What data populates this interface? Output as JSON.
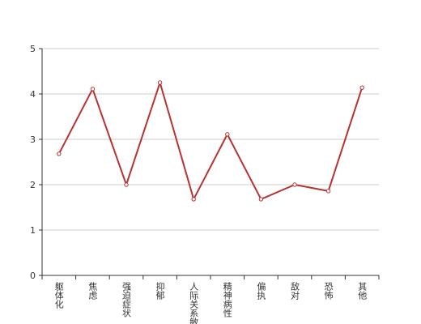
{
  "chart_data": {
    "type": "line",
    "categories": [
      "躯体化",
      "焦虑",
      "强迫症状",
      "抑郁",
      "人际关系敏感",
      "精神病性",
      "偏执",
      "敌对",
      "恐怖",
      "其他"
    ],
    "series": [
      {
        "color": "#b83232",
        "values": [
          2.68,
          4.11,
          2.0,
          4.25,
          1.68,
          3.11,
          1.68,
          2.0,
          1.86,
          4.14
        ]
      }
    ],
    "ylim": [
      0,
      5
    ],
    "yticks": [
      0,
      1,
      2,
      3,
      4,
      5
    ],
    "grid": true
  }
}
